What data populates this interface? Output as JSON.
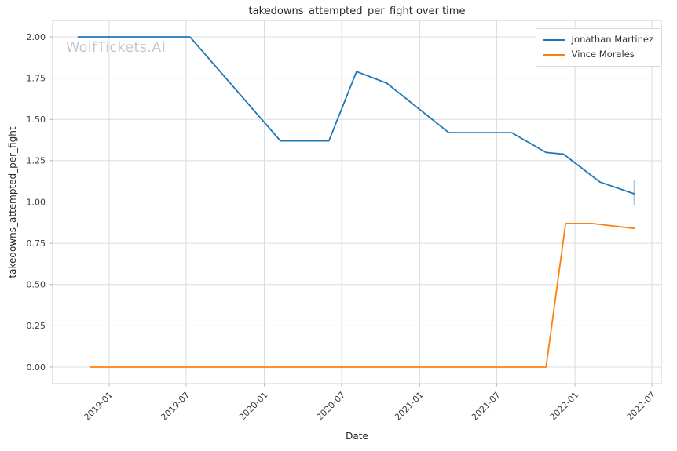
{
  "title": "takedowns_attempted_per_fight over time",
  "watermark": "WolfTickets.AI",
  "chart_data": {
    "type": "line",
    "title": "takedowns_attempted_per_fight over time",
    "xlabel": "Date",
    "ylabel": "takedowns_attempted_per_fight",
    "grid": true,
    "legend_position": "upper right",
    "x_range": [
      "2018-08-21",
      "2022-07-23"
    ],
    "ylim": [
      -0.1,
      2.1
    ],
    "x_ticks": [
      {
        "date": "2019-01-01",
        "label": "2019-01"
      },
      {
        "date": "2019-07-01",
        "label": "2019-07"
      },
      {
        "date": "2020-01-01",
        "label": "2020-01"
      },
      {
        "date": "2020-07-01",
        "label": "2020-07"
      },
      {
        "date": "2021-01-01",
        "label": "2021-01"
      },
      {
        "date": "2021-07-01",
        "label": "2021-07"
      },
      {
        "date": "2022-01-01",
        "label": "2022-01"
      },
      {
        "date": "2022-07-01",
        "label": "2022-07"
      }
    ],
    "y_ticks": [
      {
        "value": 0.0,
        "label": "0.00"
      },
      {
        "value": 0.25,
        "label": "0.25"
      },
      {
        "value": 0.5,
        "label": "0.50"
      },
      {
        "value": 0.75,
        "label": "0.75"
      },
      {
        "value": 1.0,
        "label": "1.00"
      },
      {
        "value": 1.25,
        "label": "1.25"
      },
      {
        "value": 1.5,
        "label": "1.50"
      },
      {
        "value": 1.75,
        "label": "1.75"
      },
      {
        "value": 2.0,
        "label": "2.00"
      }
    ],
    "series": [
      {
        "name": "Jonathan Martinez",
        "color": "#1f77b4",
        "points": [
          {
            "date": "2018-10-20",
            "value": 2.0
          },
          {
            "date": "2019-07-10",
            "value": 2.0
          },
          {
            "date": "2020-02-08",
            "value": 1.37
          },
          {
            "date": "2020-06-01",
            "value": 1.37
          },
          {
            "date": "2020-08-05",
            "value": 1.79
          },
          {
            "date": "2020-10-15",
            "value": 1.72
          },
          {
            "date": "2021-03-10",
            "value": 1.42
          },
          {
            "date": "2021-08-05",
            "value": 1.42
          },
          {
            "date": "2021-10-25",
            "value": 1.3
          },
          {
            "date": "2021-12-05",
            "value": 1.29
          },
          {
            "date": "2022-03-01",
            "value": 1.12
          },
          {
            "date": "2022-05-20",
            "value": 1.05
          }
        ],
        "end_error_bar": {
          "date": "2022-05-20",
          "low": 0.98,
          "high": 1.13,
          "color": "#aaccе3"
        }
      },
      {
        "name": "Vince Morales",
        "color": "#ff7f0e",
        "points": [
          {
            "date": "2018-11-18",
            "value": 0.0
          },
          {
            "date": "2021-10-25",
            "value": 0.0
          },
          {
            "date": "2021-12-10",
            "value": 0.87
          },
          {
            "date": "2022-02-10",
            "value": 0.87
          },
          {
            "date": "2022-05-20",
            "value": 0.84
          }
        ]
      }
    ]
  }
}
